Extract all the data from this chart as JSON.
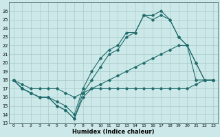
{
  "xlabel": "Humidex (Indice chaleur)",
  "bg_color": "#cce8e8",
  "line_color": "#1f6b6b",
  "grid_color": "#aacccc",
  "xlim": [
    -0.5,
    23.5
  ],
  "ylim": [
    13,
    27
  ],
  "yticks": [
    13,
    14,
    15,
    16,
    17,
    18,
    19,
    20,
    21,
    22,
    23,
    24,
    25,
    26
  ],
  "xticks": [
    0,
    1,
    2,
    3,
    4,
    5,
    6,
    7,
    8,
    9,
    10,
    11,
    12,
    13,
    14,
    15,
    16,
    17,
    18,
    19,
    20,
    21,
    22,
    23
  ],
  "lines": [
    {
      "x": [
        0,
        1,
        2,
        3,
        4,
        5,
        6,
        7,
        8,
        9,
        10,
        11,
        12,
        13,
        14,
        15,
        16,
        17,
        18,
        19,
        20,
        21,
        22,
        23
      ],
      "y": [
        18,
        17,
        16.5,
        16,
        16,
        15,
        14.5,
        13.5,
        16.5,
        18,
        19.5,
        21,
        21.5,
        23,
        23.5,
        25.5,
        25.5,
        26,
        25,
        23,
        22,
        20,
        18,
        18
      ]
    },
    {
      "x": [
        0,
        1,
        2,
        3,
        4,
        5,
        6,
        7,
        8,
        9,
        10,
        11,
        12,
        13,
        14,
        15,
        16,
        17,
        18,
        19,
        20,
        21,
        22,
        23
      ],
      "y": [
        18,
        17,
        16.5,
        16,
        16,
        15.5,
        15,
        14,
        17,
        19,
        20.5,
        21.5,
        22,
        23.5,
        23.5,
        25.5,
        25,
        25.5,
        25,
        23,
        22,
        20,
        18,
        18
      ]
    },
    {
      "x": [
        0,
        1,
        2,
        3,
        4,
        5,
        6,
        7,
        8,
        9,
        10,
        11,
        12,
        13,
        14,
        15,
        16,
        17,
        18,
        19,
        20,
        21,
        22,
        23
      ],
      "y": [
        18,
        17.5,
        17,
        17,
        17,
        17,
        16.5,
        16,
        16.5,
        17,
        17.5,
        18,
        18.5,
        19,
        19.5,
        20,
        20.5,
        21,
        21.5,
        22,
        22,
        18,
        18,
        18
      ]
    },
    {
      "x": [
        0,
        1,
        2,
        3,
        4,
        5,
        6,
        7,
        8,
        9,
        10,
        11,
        12,
        13,
        14,
        15,
        16,
        17,
        18,
        19,
        20,
        21,
        22,
        23
      ],
      "y": [
        18,
        17,
        16.5,
        16,
        16,
        15,
        14.5,
        13.5,
        16,
        17,
        17,
        17,
        17,
        17,
        17,
        17,
        17,
        17,
        17,
        17,
        17,
        17.5,
        18,
        18
      ]
    }
  ]
}
